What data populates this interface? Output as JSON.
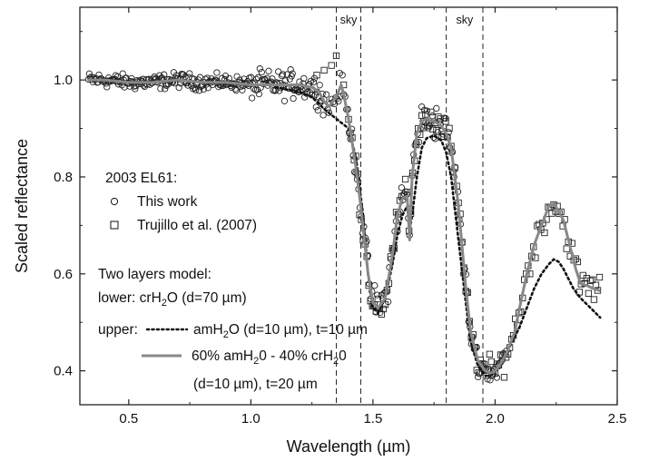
{
  "chart_data": {
    "type": "scatter",
    "xlabel": "Wavelength (µm)",
    "ylabel": "Scaled reflectance",
    "xlim": [
      0.3,
      2.5
    ],
    "ylim": [
      0.33,
      1.15
    ],
    "xticks": [
      0.5,
      1.0,
      1.5,
      2.0,
      2.5
    ],
    "xtick_labels": [
      "0.5",
      "1.0",
      "1.5",
      "2.0",
      "2.5"
    ],
    "yticks": [
      0.4,
      0.6,
      0.8,
      1.0
    ],
    "ytick_labels": [
      "0.4",
      "0.6",
      "0.8",
      "1.0"
    ],
    "grid": false,
    "sky_bands": [
      {
        "label": "sky",
        "x1": 1.35,
        "x2": 1.45
      },
      {
        "label": "sky",
        "x1": 1.8,
        "x2": 1.95
      }
    ],
    "legend": {
      "object": "2003 EL61:",
      "this_work": "This work",
      "trujillo": "Trujillo et al. (2007)",
      "model_title": "Two layers model:",
      "lower_prefix": "lower: crH",
      "lower_sub": "2",
      "lower_suffix": "O (d=70 µm)",
      "upper_prefix": "upper:",
      "upper_label_a": "amH",
      "upper_sub": "2",
      "upper_label_b": "O (d=10 µm), t=10 µm",
      "mix_label_a": "60% amH",
      "mix_sub_1": "2",
      "mix_label_b": "0 - 40% crH",
      "mix_sub_2": "2",
      "mix_label_c": "0",
      "mix_line2": "(d=10 µm), t=20 µm"
    },
    "series": [
      {
        "name": "amH2O (d=10 µm), t=10 µm",
        "style": "dotted",
        "color": "#111111",
        "x": [
          1.1,
          1.2,
          1.25,
          1.3,
          1.35,
          1.4,
          1.43,
          1.46,
          1.48,
          1.5,
          1.52,
          1.55,
          1.58,
          1.6,
          1.62,
          1.64,
          1.65,
          1.66,
          1.68,
          1.7,
          1.72,
          1.75,
          1.78,
          1.8,
          1.82,
          1.85,
          1.88,
          1.9,
          1.93,
          1.96,
          1.98,
          2.0,
          2.03,
          2.06,
          2.1,
          2.13,
          2.16,
          2.19,
          2.22,
          2.24,
          2.26,
          2.28,
          2.3,
          2.32,
          2.35,
          2.38,
          2.4,
          2.43
        ],
        "y": [
          0.985,
          0.975,
          0.965,
          0.94,
          0.92,
          0.9,
          0.84,
          0.72,
          0.6,
          0.53,
          0.52,
          0.55,
          0.62,
          0.68,
          0.72,
          0.74,
          0.69,
          0.72,
          0.8,
          0.86,
          0.88,
          0.885,
          0.875,
          0.85,
          0.8,
          0.67,
          0.54,
          0.46,
          0.41,
          0.39,
          0.39,
          0.4,
          0.42,
          0.45,
          0.49,
          0.53,
          0.57,
          0.6,
          0.62,
          0.63,
          0.625,
          0.61,
          0.59,
          0.57,
          0.55,
          0.535,
          0.525,
          0.51
        ]
      },
      {
        "name": "60% amH2O - 40% crH2O (d=10 µm), t=20 µm",
        "style": "solid",
        "color": "#888888",
        "x": [
          0.33,
          0.4,
          0.5,
          0.6,
          0.7,
          0.8,
          0.9,
          1.0,
          1.05,
          1.1,
          1.15,
          1.2,
          1.25,
          1.28,
          1.3,
          1.32,
          1.35,
          1.37,
          1.38,
          1.4,
          1.43,
          1.45,
          1.48,
          1.5,
          1.52,
          1.55,
          1.58,
          1.6,
          1.62,
          1.64,
          1.65,
          1.66,
          1.68,
          1.7,
          1.72,
          1.75,
          1.78,
          1.8,
          1.82,
          1.85,
          1.88,
          1.9,
          1.93,
          1.96,
          1.98,
          2.0,
          2.03,
          2.05,
          2.08,
          2.1,
          2.13,
          2.16,
          2.19,
          2.22,
          2.24,
          2.26,
          2.28,
          2.3,
          2.33,
          2.35,
          2.38,
          2.4,
          2.43
        ],
        "y": [
          1.0,
          1.0,
          0.995,
          0.995,
          1.0,
          0.995,
          0.995,
          0.99,
          0.99,
          0.99,
          0.99,
          0.99,
          0.985,
          0.975,
          0.955,
          0.945,
          0.965,
          0.99,
          0.97,
          0.92,
          0.82,
          0.74,
          0.6,
          0.54,
          0.53,
          0.55,
          0.64,
          0.72,
          0.755,
          0.76,
          0.67,
          0.8,
          0.89,
          0.915,
          0.92,
          0.915,
          0.905,
          0.89,
          0.86,
          0.74,
          0.57,
          0.48,
          0.42,
          0.4,
          0.395,
          0.4,
          0.42,
          0.44,
          0.48,
          0.53,
          0.6,
          0.66,
          0.7,
          0.74,
          0.745,
          0.73,
          0.71,
          0.67,
          0.61,
          0.58,
          0.575,
          0.57,
          0.565
        ]
      }
    ],
    "scatter_series": [
      {
        "name": "This work",
        "marker": "circle",
        "note": "dense points from 0.33 to ~2.05 µm"
      },
      {
        "name": "Trujillo et al. (2007)",
        "marker": "square",
        "note": "points from ~1.4 to 2.43 µm"
      }
    ]
  }
}
